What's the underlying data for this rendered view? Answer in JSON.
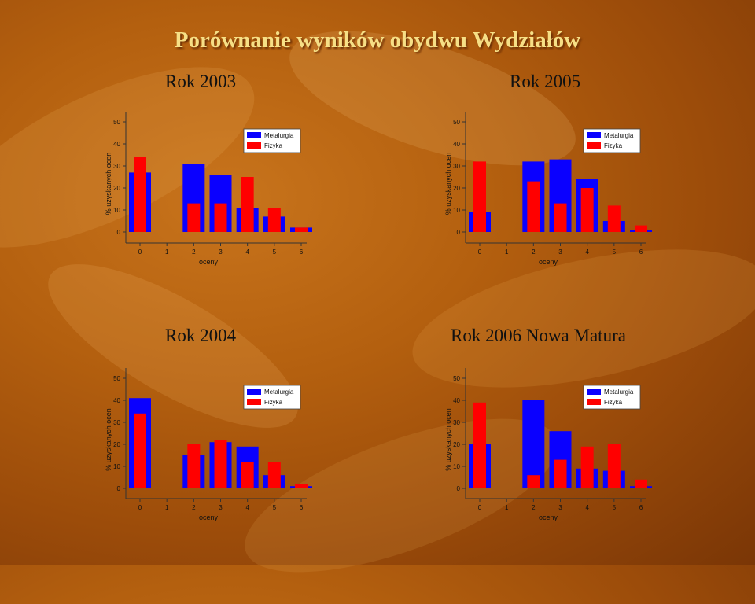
{
  "page": {
    "title": "Porównanie wyników obydwu Wydziałów",
    "subtitles": [
      "Rok 2003",
      "Rok 2005",
      "Rok 2004",
      "Rok 2006 Nowa Matura"
    ]
  },
  "colors": {
    "metalurgia": "#0a00ff",
    "fizyka": "#ff0000"
  },
  "chart_data": [
    {
      "type": "bar",
      "title": "Rok 2003",
      "xlabel": "oceny",
      "ylabel": "% uzyskanych ocen",
      "categories": [
        "0",
        "1",
        "2",
        "3",
        "4",
        "5",
        "6"
      ],
      "ylim": [
        0,
        50
      ],
      "yticks": [
        "0",
        "10",
        "20",
        "30",
        "40",
        "50"
      ],
      "legend": "top-right",
      "series": [
        {
          "name": "Metalurgia",
          "values": [
            27,
            0,
            31,
            26,
            11,
            7,
            2
          ]
        },
        {
          "name": "Fizyka",
          "values": [
            34,
            0,
            13,
            13,
            25,
            11,
            2
          ]
        }
      ]
    },
    {
      "type": "bar",
      "title": "Rok 2005",
      "xlabel": "oceny",
      "ylabel": "% uzyskanych ocen",
      "categories": [
        "0",
        "1",
        "2",
        "3",
        "4",
        "5",
        "6"
      ],
      "ylim": [
        0,
        50
      ],
      "yticks": [
        "0",
        "10",
        "20",
        "30",
        "40",
        "50"
      ],
      "legend": "top-right",
      "series": [
        {
          "name": "Metalurgia",
          "values": [
            9,
            0,
            32,
            33,
            24,
            5,
            1
          ]
        },
        {
          "name": "Fizyka",
          "values": [
            32,
            0,
            23,
            13,
            20,
            12,
            3
          ]
        }
      ]
    },
    {
      "type": "bar",
      "title": "Rok 2004",
      "xlabel": "oceny",
      "ylabel": "% uzyskanych ocen",
      "categories": [
        "0",
        "1",
        "2",
        "3",
        "4",
        "5",
        "6"
      ],
      "ylim": [
        0,
        50
      ],
      "yticks": [
        "0",
        "10",
        "20",
        "30",
        "40",
        "50"
      ],
      "legend": "top-right",
      "series": [
        {
          "name": "Metalurgia",
          "values": [
            41,
            0,
            15,
            21,
            19,
            6,
            1
          ]
        },
        {
          "name": "Fizyka",
          "values": [
            34,
            0,
            20,
            22,
            12,
            12,
            2
          ]
        }
      ]
    },
    {
      "type": "bar",
      "title": "Rok 2006 Nowa Matura",
      "xlabel": "oceny",
      "ylabel": "% uzyskanych ocen",
      "categories": [
        "0",
        "1",
        "2",
        "3",
        "4",
        "5",
        "6"
      ],
      "ylim": [
        0,
        50
      ],
      "yticks": [
        "0",
        "10",
        "20",
        "30",
        "40",
        "50"
      ],
      "legend": "top-right",
      "series": [
        {
          "name": "Metalurgia",
          "values": [
            20,
            0,
            40,
            26,
            9,
            8,
            1
          ]
        },
        {
          "name": "Fizyka",
          "values": [
            39,
            0,
            6,
            13,
            19,
            20,
            4
          ]
        }
      ]
    }
  ]
}
